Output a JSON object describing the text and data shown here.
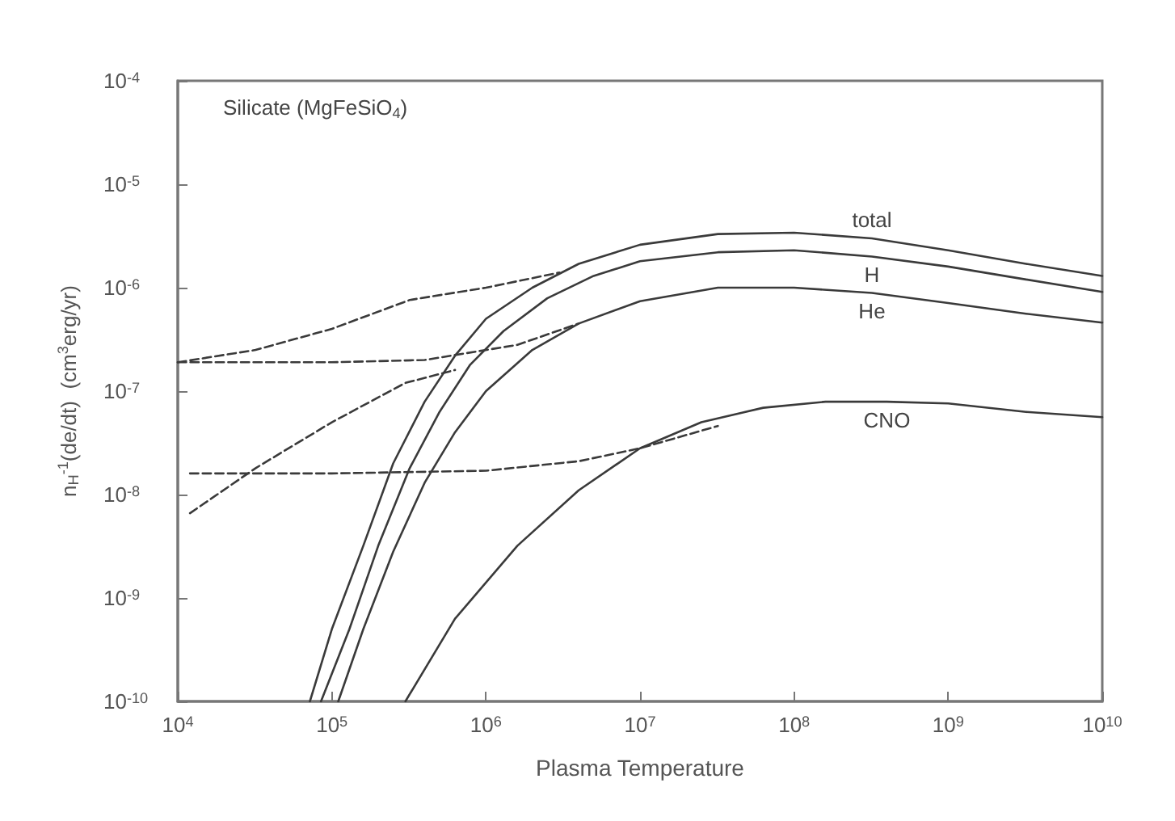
{
  "chart_data": {
    "type": "line",
    "xlabel": "Plasma Temperature",
    "ylabel": "n$_{H}$$^{-1}$(de/dt)  (cm$^{3}$erg/yr)",
    "log": "xy",
    "grid": false,
    "legend": false,
    "marker": "none",
    "xlim": [
      10000,
      10000000000
    ],
    "ylim": [
      1e-10,
      0.0001
    ],
    "xticks": [
      {
        "value": 10000,
        "label": "10$^{4}$"
      },
      {
        "value": 100000,
        "label": "10$^{5}$"
      },
      {
        "value": 1000000,
        "label": "10$^{6}$"
      },
      {
        "value": 10000000,
        "label": "10$^{7}$"
      },
      {
        "value": 100000000,
        "label": "10$^{8}$"
      },
      {
        "value": 1000000000,
        "label": "10$^{9}$"
      },
      {
        "value": 10000000000,
        "label": "10$^{10}$"
      }
    ],
    "yticks": [
      {
        "value": 1e-10,
        "label": "10$^{-10}$"
      },
      {
        "value": 1e-09,
        "label": "10$^{-9}$"
      },
      {
        "value": 1e-08,
        "label": "10$^{-8}$"
      },
      {
        "value": 1e-07,
        "label": "10$^{-7}$"
      },
      {
        "value": 1e-06,
        "label": "10$^{-6}$"
      },
      {
        "value": 1e-05,
        "label": "10$^{-5}$"
      },
      {
        "value": 0.0001,
        "label": "10$^{-4}$"
      }
    ],
    "series": [
      {
        "name": "total",
        "color": "#3a3a3a",
        "line_style": "solid",
        "x": [
          72000,
          100000,
          160000,
          250000,
          400000,
          630000,
          1000000,
          2000000,
          4000000,
          10000000,
          32000000,
          100000000,
          320000000,
          1000000000,
          3200000000,
          10000000000
        ],
        "values": [
          1e-10,
          5e-10,
          3.2e-09,
          2e-08,
          7.9e-08,
          2.2e-07,
          5e-07,
          1e-06,
          1.7e-06,
          2.6e-06,
          3.3e-06,
          3.4e-06,
          3e-06,
          2.3e-06,
          1.7e-06,
          1.3e-06
        ]
      },
      {
        "name": "H",
        "color": "#3a3a3a",
        "line_style": "solid",
        "x": [
          85000,
          130000,
          200000,
          320000,
          500000,
          790000,
          1300000,
          2500000,
          5000000,
          10000000,
          32000000,
          100000000,
          320000000,
          1000000000,
          3200000000,
          10000000000
        ],
        "values": [
          1e-10,
          5e-10,
          3.2e-09,
          1.8e-08,
          6.3e-08,
          1.8e-07,
          3.8e-07,
          7.9e-07,
          1.3e-06,
          1.8e-06,
          2.2e-06,
          2.3e-06,
          2e-06,
          1.6e-06,
          1.2e-06,
          9.1e-07
        ]
      },
      {
        "name": "He",
        "color": "#3a3a3a",
        "line_style": "solid",
        "x": [
          110000,
          160000,
          250000,
          400000,
          630000,
          1000000,
          2000000,
          4000000,
          10000000,
          32000000,
          100000000,
          320000000,
          1000000000,
          3200000000,
          10000000000
        ],
        "values": [
          1e-10,
          5e-10,
          2.8e-09,
          1.3e-08,
          4e-08,
          1e-07,
          2.5e-07,
          4.5e-07,
          7.4e-07,
          1e-06,
          1e-06,
          8.9e-07,
          7.1e-07,
          5.6e-07,
          4.6e-07
        ]
      },
      {
        "name": "CNO",
        "color": "#3a3a3a",
        "line_style": "solid",
        "x": [
          300000,
          630000,
          1600000,
          4000000,
          10000000,
          25000000,
          63000000,
          160000000,
          400000000,
          1000000000,
          3200000000,
          10000000000
        ],
        "values": [
          1e-10,
          6.3e-10,
          3.2e-09,
          1.1e-08,
          2.8e-08,
          5e-08,
          6.9e-08,
          7.9e-08,
          7.9e-08,
          7.6e-08,
          6.3e-08,
          5.6e-08
        ]
      },
      {
        "color": "#3a3a3a",
        "line_style": "dashed",
        "x": [
          10000,
          32000,
          100000,
          320000,
          1000000,
          3000000
        ],
        "values": [
          1.9e-07,
          2.5e-07,
          4e-07,
          7.6e-07,
          1e-06,
          1.4e-06
        ]
      },
      {
        "color": "#3a3a3a",
        "line_style": "dashed",
        "x": [
          10000,
          100000,
          400000,
          1600000,
          4000000
        ],
        "values": [
          1.9e-07,
          1.9e-07,
          2e-07,
          2.8e-07,
          4.5e-07
        ]
      },
      {
        "color": "#3a3a3a",
        "line_style": "dashed",
        "x": [
          12000,
          32000,
          100000,
          300000,
          630000
        ],
        "values": [
          6.6e-09,
          1.8e-08,
          5e-08,
          1.2e-07,
          1.6e-07
        ]
      },
      {
        "color": "#3a3a3a",
        "line_style": "dashed",
        "x": [
          12000,
          100000,
          1000000,
          4000000,
          10000000,
          32000000
        ],
        "values": [
          1.6e-08,
          1.6e-08,
          1.7e-08,
          2.1e-08,
          2.8e-08,
          4.6e-08
        ]
      }
    ],
    "annotations": [
      "Silicate (MgFeSiO$_{4}$)"
    ]
  }
}
